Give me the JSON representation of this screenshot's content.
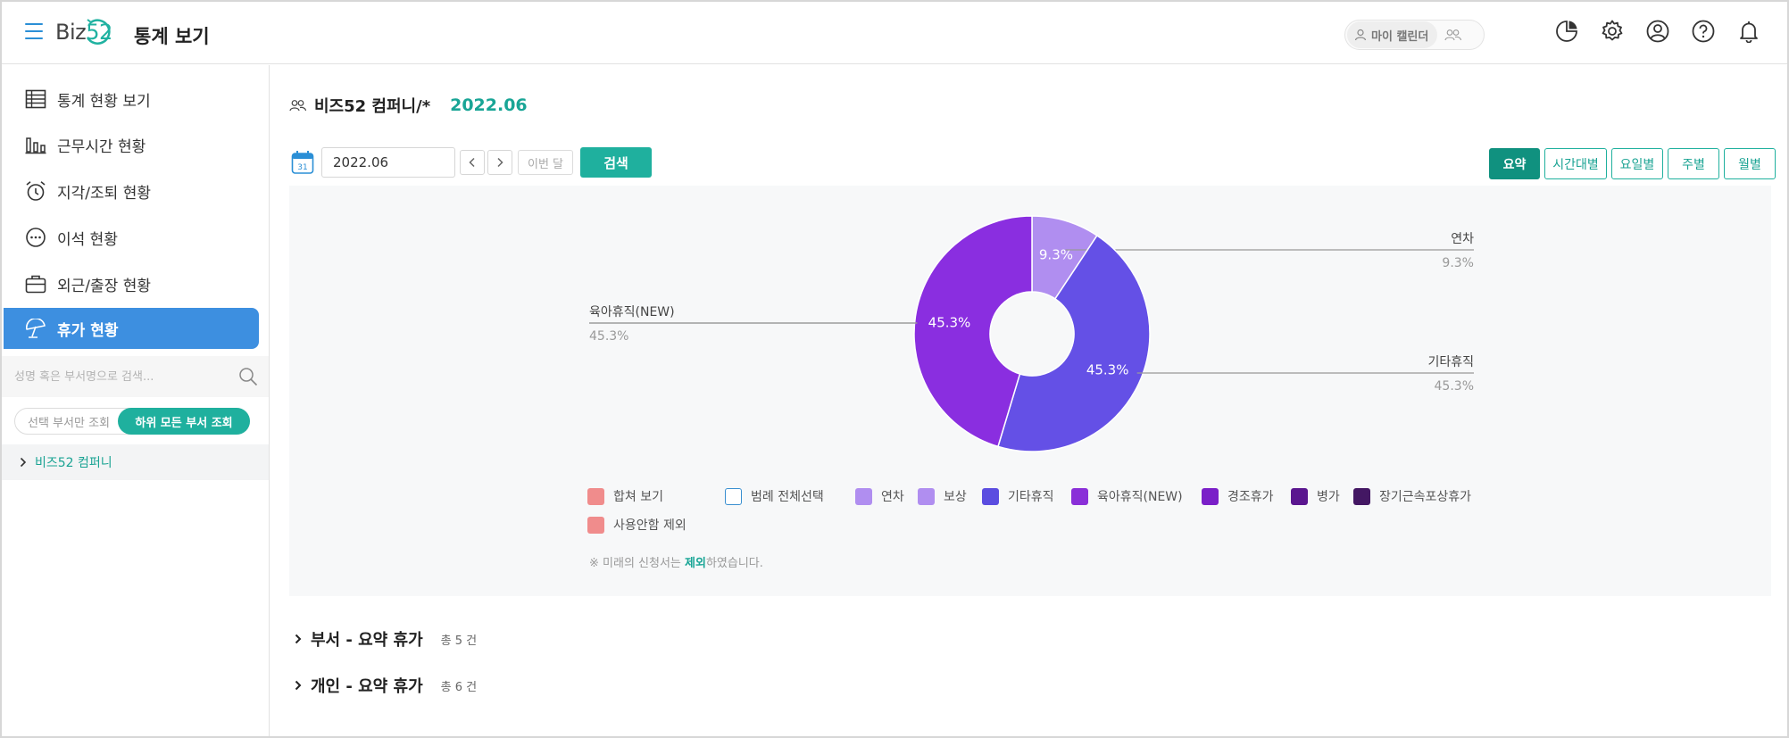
{
  "header": {
    "logo_text": "Biz",
    "logo_num": "52",
    "title": "통계 보기",
    "calendar_toggle": "마이 캘린더"
  },
  "sidebar": {
    "items": [
      {
        "label": "통계 현황 보기"
      },
      {
        "label": "근무시간 현황"
      },
      {
        "label": "지각/조퇴 현황"
      },
      {
        "label": "이석 현황"
      },
      {
        "label": "외근/출장 현황"
      },
      {
        "label": "휴가 현황"
      }
    ],
    "search_placeholder": "성명 혹은 부서명으로 검색...",
    "scope_option": "선택 부서만 조회",
    "scope_selected": "하위 모든 부서 조회",
    "tree_root": "비즈52 컴퍼니"
  },
  "main": {
    "company": "비즈52 컴퍼니/*",
    "period": "2022.06",
    "date_value": "2022.06",
    "this_month": "이번 달",
    "search": "검색",
    "tabs": [
      "요약",
      "시간대별",
      "요일별",
      "주별",
      "월별"
    ],
    "legend_items": [
      {
        "label": "합쳐 보기",
        "color": "#f08c8c"
      },
      {
        "label": "범례 전체선택",
        "color": "outline"
      },
      {
        "label": "연차",
        "color": "#b08ef0"
      },
      {
        "label": "보상",
        "color": "#b08ef0"
      },
      {
        "label": "기타휴직",
        "color": "#5b4de0"
      },
      {
        "label": "육아휴직(NEW)",
        "color": "#8a2fd8"
      },
      {
        "label": "경조휴가",
        "color": "#7a1fc8"
      },
      {
        "label": "병가",
        "color": "#5a168f"
      },
      {
        "label": "장기근속포상휴가",
        "color": "#431763"
      },
      {
        "label": "사용안함 제외",
        "color": "#f08c8c"
      }
    ],
    "note_prefix": "※ 미래의 신청서는 ",
    "note_highlight": "제외",
    "note_suffix": "하였습니다.",
    "sections": [
      {
        "title": "부서 - 요약 휴가",
        "count": "총 5 건"
      },
      {
        "title": "개인 - 요약 휴가",
        "count": "총 6 건"
      }
    ]
  },
  "chart_data": {
    "type": "pie",
    "donut": true,
    "slices": [
      {
        "name": "연차",
        "value": 9.3,
        "label": "9.3%",
        "color": "#b08ef0"
      },
      {
        "name": "기타휴직",
        "value": 45.3,
        "label": "45.3%",
        "color": "#6450e6"
      },
      {
        "name": "육아휴직(NEW)",
        "value": 45.3,
        "label": "45.3%",
        "color": "#8a2ee0"
      }
    ]
  }
}
